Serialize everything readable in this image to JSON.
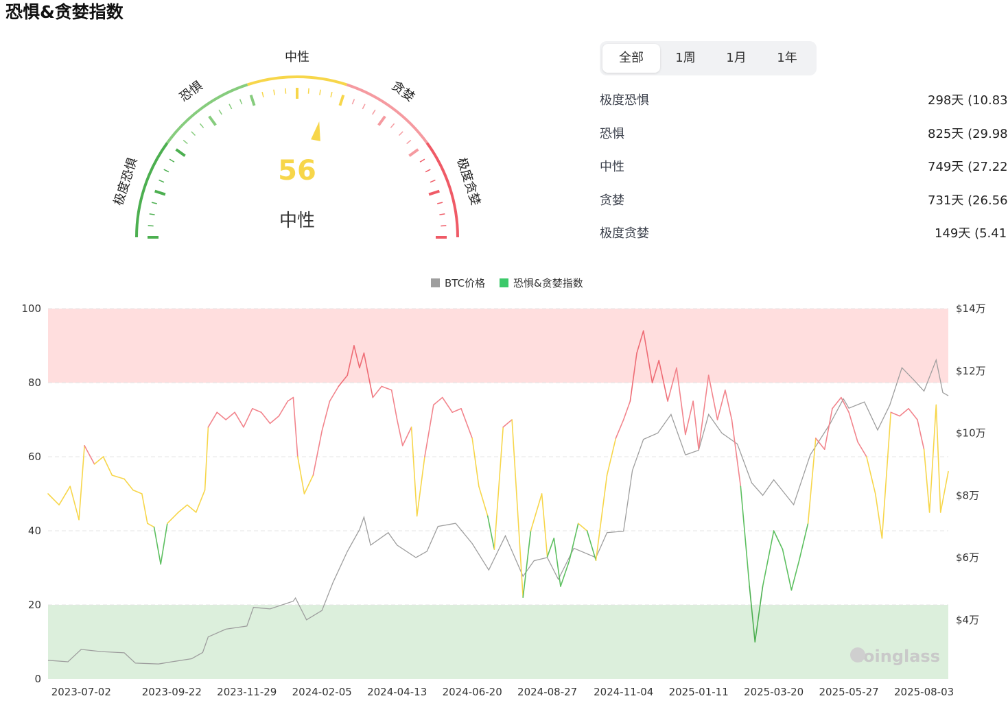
{
  "page": {
    "title": "恐惧&贪婪指数"
  },
  "gauge": {
    "value": 56,
    "value_label": "56",
    "state_label": "中性",
    "segments": [
      {
        "label": "极度恐惧",
        "from": 0,
        "to": 20,
        "color": "#4caf50"
      },
      {
        "label": "恐惧",
        "from": 20,
        "to": 40,
        "color": "#86cc7d"
      },
      {
        "label": "中性",
        "from": 40,
        "to": 60,
        "color": "#f7d64a"
      },
      {
        "label": "贪婪",
        "from": 60,
        "to": 80,
        "color": "#f59aa0"
      },
      {
        "label": "极度贪婪",
        "from": 80,
        "to": 100,
        "color": "#ef5a66"
      }
    ],
    "value_color": "#f7d64a"
  },
  "tabs": {
    "items": [
      "全部",
      "1周",
      "1月",
      "1年"
    ],
    "active": "全部"
  },
  "stats": [
    {
      "label": "极度恐惧",
      "value": "298天 (10.83"
    },
    {
      "label": "恐惧",
      "value": "825天 (29.98"
    },
    {
      "label": "中性",
      "value": "749天 (27.22"
    },
    {
      "label": "贪婪",
      "value": "731天 (26.56"
    },
    {
      "label": "极度贪婪",
      "value": "149天 (5.41"
    }
  ],
  "watermark": "coinglass",
  "chart_data": {
    "type": "line",
    "legend": {
      "position": "top-center",
      "items": [
        {
          "name": "BTC价格",
          "color": "#9e9e9e"
        },
        {
          "name": "恐惧&贪婪指数",
          "color": "#3cc96a"
        }
      ]
    },
    "x_ticks": [
      "2023-07-02",
      "2023-09-22",
      "2023-11-29",
      "2024-02-05",
      "2024-04-13",
      "2024-06-20",
      "2024-08-27",
      "2024-11-04",
      "2025-01-11",
      "2025-03-20",
      "2025-05-27",
      "2025-08-03"
    ],
    "x_range": [
      "2023-06-02",
      "2025-08-25"
    ],
    "y_left": {
      "ticks": [
        "0",
        "20",
        "40",
        "60",
        "80",
        "100"
      ],
      "range": [
        0,
        100
      ]
    },
    "y_right": {
      "ticks": [
        "$4万",
        "$6万",
        "$8万",
        "$10万",
        "$12万",
        "$14万"
      ],
      "range": [
        21000,
        140000
      ]
    },
    "bands": [
      {
        "from": 80,
        "to": 100,
        "color": "#ffdede"
      },
      {
        "from": 0,
        "to": 20,
        "color": "#dcefdc"
      }
    ],
    "thresholds": [
      {
        "max": 20,
        "color": "#4caf50"
      },
      {
        "max": 40,
        "color": "#5cbf5f"
      },
      {
        "max": 60,
        "color": "#f7d64a"
      },
      {
        "max": 80,
        "color": "#f2848c"
      },
      {
        "max": 100,
        "color": "#ee6b74"
      }
    ],
    "series": [
      {
        "name": "BTC价格",
        "color": "#9e9e9e",
        "axis": "right",
        "points": [
          [
            "2023-06-02",
            27000
          ],
          [
            "2023-06-20",
            26500
          ],
          [
            "2023-07-02",
            30500
          ],
          [
            "2023-07-20",
            29800
          ],
          [
            "2023-08-10",
            29400
          ],
          [
            "2023-08-20",
            26100
          ],
          [
            "2023-09-10",
            25800
          ],
          [
            "2023-09-22",
            26500
          ],
          [
            "2023-10-10",
            27500
          ],
          [
            "2023-10-20",
            29500
          ],
          [
            "2023-10-25",
            34500
          ],
          [
            "2023-11-10",
            37000
          ],
          [
            "2023-11-29",
            38000
          ],
          [
            "2023-12-05",
            44000
          ],
          [
            "2023-12-20",
            43500
          ],
          [
            "2024-01-10",
            46000
          ],
          [
            "2024-01-12",
            47000
          ],
          [
            "2024-01-22",
            40000
          ],
          [
            "2024-02-05",
            43000
          ],
          [
            "2024-02-15",
            52000
          ],
          [
            "2024-02-28",
            62000
          ],
          [
            "2024-03-10",
            69000
          ],
          [
            "2024-03-14",
            73000
          ],
          [
            "2024-03-20",
            64000
          ],
          [
            "2024-04-05",
            68000
          ],
          [
            "2024-04-13",
            64000
          ],
          [
            "2024-04-30",
            60000
          ],
          [
            "2024-05-10",
            62000
          ],
          [
            "2024-05-20",
            70000
          ],
          [
            "2024-06-05",
            71000
          ],
          [
            "2024-06-20",
            64500
          ],
          [
            "2024-07-05",
            56000
          ],
          [
            "2024-07-20",
            67000
          ],
          [
            "2024-08-05",
            54000
          ],
          [
            "2024-08-15",
            59000
          ],
          [
            "2024-08-27",
            60000
          ],
          [
            "2024-09-06",
            53000
          ],
          [
            "2024-09-20",
            63000
          ],
          [
            "2024-10-10",
            60000
          ],
          [
            "2024-10-20",
            68000
          ],
          [
            "2024-11-04",
            68500
          ],
          [
            "2024-11-12",
            88000
          ],
          [
            "2024-11-22",
            98000
          ],
          [
            "2024-12-05",
            100000
          ],
          [
            "2024-12-17",
            106000
          ],
          [
            "2024-12-30",
            93000
          ],
          [
            "2025-01-11",
            94500
          ],
          [
            "2025-01-20",
            106000
          ],
          [
            "2025-02-01",
            100000
          ],
          [
            "2025-02-15",
            96500
          ],
          [
            "2025-02-28",
            84000
          ],
          [
            "2025-03-10",
            80000
          ],
          [
            "2025-03-20",
            85000
          ],
          [
            "2025-04-07",
            77000
          ],
          [
            "2025-04-22",
            93000
          ],
          [
            "2025-05-10",
            103000
          ],
          [
            "2025-05-22",
            111000
          ],
          [
            "2025-05-27",
            108000
          ],
          [
            "2025-06-10",
            110000
          ],
          [
            "2025-06-22",
            101000
          ],
          [
            "2025-07-03",
            109000
          ],
          [
            "2025-07-14",
            121000
          ],
          [
            "2025-07-25",
            117000
          ],
          [
            "2025-08-03",
            113500
          ],
          [
            "2025-08-14",
            123500
          ],
          [
            "2025-08-20",
            113000
          ],
          [
            "2025-08-25",
            112000
          ]
        ]
      },
      {
        "name": "恐惧&贪婪指数",
        "axis": "left",
        "points": [
          [
            "2023-06-02",
            50
          ],
          [
            "2023-06-12",
            47
          ],
          [
            "2023-06-22",
            52
          ],
          [
            "2023-06-30",
            43
          ],
          [
            "2023-07-05",
            63
          ],
          [
            "2023-07-14",
            58
          ],
          [
            "2023-07-22",
            60
          ],
          [
            "2023-07-30",
            55
          ],
          [
            "2023-08-10",
            54
          ],
          [
            "2023-08-18",
            51
          ],
          [
            "2023-08-26",
            50
          ],
          [
            "2023-08-31",
            42
          ],
          [
            "2023-09-06",
            41
          ],
          [
            "2023-09-12",
            31
          ],
          [
            "2023-09-18",
            42
          ],
          [
            "2023-09-28",
            45
          ],
          [
            "2023-10-06",
            47
          ],
          [
            "2023-10-14",
            45
          ],
          [
            "2023-10-22",
            51
          ],
          [
            "2023-10-25",
            68
          ],
          [
            "2023-11-02",
            72
          ],
          [
            "2023-11-10",
            70
          ],
          [
            "2023-11-18",
            72
          ],
          [
            "2023-11-26",
            68
          ],
          [
            "2023-12-04",
            73
          ],
          [
            "2023-12-12",
            72
          ],
          [
            "2023-12-20",
            69
          ],
          [
            "2023-12-28",
            71
          ],
          [
            "2024-01-05",
            75
          ],
          [
            "2024-01-10",
            76
          ],
          [
            "2024-01-14",
            60
          ],
          [
            "2024-01-20",
            50
          ],
          [
            "2024-01-28",
            55
          ],
          [
            "2024-02-05",
            67
          ],
          [
            "2024-02-12",
            75
          ],
          [
            "2024-02-20",
            79
          ],
          [
            "2024-02-28",
            82
          ],
          [
            "2024-03-05",
            90
          ],
          [
            "2024-03-10",
            84
          ],
          [
            "2024-03-14",
            88
          ],
          [
            "2024-03-22",
            76
          ],
          [
            "2024-03-30",
            79
          ],
          [
            "2024-04-08",
            78
          ],
          [
            "2024-04-13",
            70
          ],
          [
            "2024-04-18",
            63
          ],
          [
            "2024-04-26",
            68
          ],
          [
            "2024-05-01",
            44
          ],
          [
            "2024-05-08",
            60
          ],
          [
            "2024-05-16",
            74
          ],
          [
            "2024-05-24",
            76
          ],
          [
            "2024-06-02",
            72
          ],
          [
            "2024-06-10",
            73
          ],
          [
            "2024-06-20",
            65
          ],
          [
            "2024-06-26",
            52
          ],
          [
            "2024-07-04",
            44
          ],
          [
            "2024-07-10",
            35
          ],
          [
            "2024-07-18",
            68
          ],
          [
            "2024-07-26",
            70
          ],
          [
            "2024-08-05",
            22
          ],
          [
            "2024-08-12",
            40
          ],
          [
            "2024-08-22",
            50
          ],
          [
            "2024-08-27",
            33
          ],
          [
            "2024-09-02",
            38
          ],
          [
            "2024-09-08",
            25
          ],
          [
            "2024-09-16",
            32
          ],
          [
            "2024-09-24",
            42
          ],
          [
            "2024-10-02",
            40
          ],
          [
            "2024-10-10",
            32
          ],
          [
            "2024-10-20",
            55
          ],
          [
            "2024-10-28",
            65
          ],
          [
            "2024-11-04",
            70
          ],
          [
            "2024-11-10",
            75
          ],
          [
            "2024-11-16",
            88
          ],
          [
            "2024-11-22",
            94
          ],
          [
            "2024-11-30",
            80
          ],
          [
            "2024-12-06",
            86
          ],
          [
            "2024-12-14",
            75
          ],
          [
            "2024-12-22",
            84
          ],
          [
            "2024-12-30",
            66
          ],
          [
            "2025-01-06",
            75
          ],
          [
            "2025-01-11",
            62
          ],
          [
            "2025-01-20",
            82
          ],
          [
            "2025-01-28",
            70
          ],
          [
            "2025-02-04",
            78
          ],
          [
            "2025-02-10",
            70
          ],
          [
            "2025-02-18",
            52
          ],
          [
            "2025-02-26",
            25
          ],
          [
            "2025-03-03",
            10
          ],
          [
            "2025-03-10",
            25
          ],
          [
            "2025-03-20",
            40
          ],
          [
            "2025-03-28",
            35
          ],
          [
            "2025-04-05",
            24
          ],
          [
            "2025-04-12",
            32
          ],
          [
            "2025-04-20",
            42
          ],
          [
            "2025-04-27",
            65
          ],
          [
            "2025-05-05",
            62
          ],
          [
            "2025-05-12",
            73
          ],
          [
            "2025-05-20",
            76
          ],
          [
            "2025-05-27",
            72
          ],
          [
            "2025-06-04",
            64
          ],
          [
            "2025-06-12",
            60
          ],
          [
            "2025-06-20",
            50
          ],
          [
            "2025-06-26",
            38
          ],
          [
            "2025-07-04",
            72
          ],
          [
            "2025-07-12",
            71
          ],
          [
            "2025-07-20",
            73
          ],
          [
            "2025-07-28",
            70
          ],
          [
            "2025-08-03",
            62
          ],
          [
            "2025-08-08",
            45
          ],
          [
            "2025-08-14",
            74
          ],
          [
            "2025-08-18",
            45
          ],
          [
            "2025-08-25",
            56
          ]
        ]
      }
    ]
  }
}
